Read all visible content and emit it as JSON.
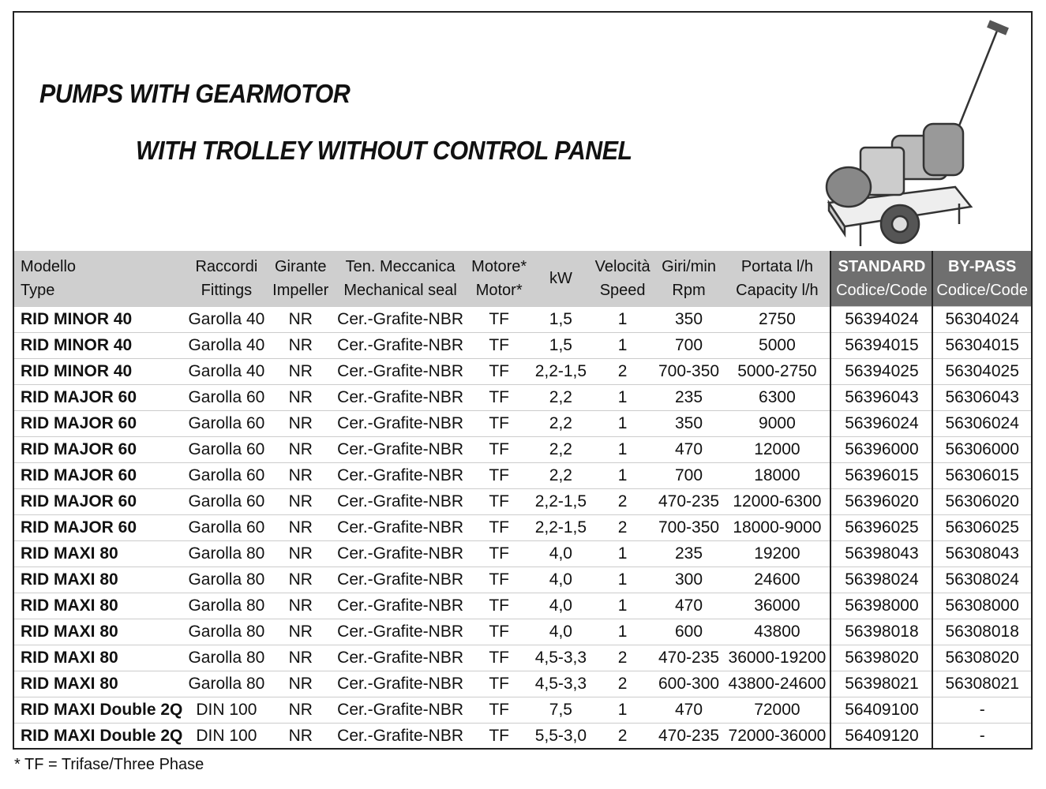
{
  "title_line1": "PUMPS WITH GEARMOTOR",
  "title_line2": "WITH TROLLEY WITHOUT CONTROL PANEL",
  "headers": {
    "model": [
      "Modello",
      "Type"
    ],
    "fittings": [
      "Raccordi",
      "Fittings"
    ],
    "impeller": [
      "Girante",
      "Impeller"
    ],
    "seal": [
      "Ten. Meccanica",
      "Mechanical seal"
    ],
    "motor": [
      "Motore*",
      "Motor*"
    ],
    "kw": "kW",
    "speed": [
      "Velocità",
      "Speed"
    ],
    "rpm": [
      "Giri/min",
      "Rpm"
    ],
    "capacity": [
      "Portata l/h",
      "Capacity l/h"
    ],
    "standard": [
      "STANDARD",
      "Codice/Code"
    ],
    "bypass": [
      "BY-PASS",
      "Codice/Code"
    ]
  },
  "rows": [
    [
      "RID MINOR 40",
      "Garolla 40",
      "NR",
      "Cer.-Grafite-NBR",
      "TF",
      "1,5",
      "1",
      "350",
      "2750",
      "56394024",
      "56304024"
    ],
    [
      "RID MINOR 40",
      "Garolla 40",
      "NR",
      "Cer.-Grafite-NBR",
      "TF",
      "1,5",
      "1",
      "700",
      "5000",
      "56394015",
      "56304015"
    ],
    [
      "RID MINOR 40",
      "Garolla 40",
      "NR",
      "Cer.-Grafite-NBR",
      "TF",
      "2,2-1,5",
      "2",
      "700-350",
      "5000-2750",
      "56394025",
      "56304025"
    ],
    [
      "RID MAJOR 60",
      "Garolla 60",
      "NR",
      "Cer.-Grafite-NBR",
      "TF",
      "2,2",
      "1",
      "235",
      "6300",
      "56396043",
      "56306043"
    ],
    [
      "RID MAJOR 60",
      "Garolla 60",
      "NR",
      "Cer.-Grafite-NBR",
      "TF",
      "2,2",
      "1",
      "350",
      "9000",
      "56396024",
      "56306024"
    ],
    [
      "RID MAJOR 60",
      "Garolla 60",
      "NR",
      "Cer.-Grafite-NBR",
      "TF",
      "2,2",
      "1",
      "470",
      "12000",
      "56396000",
      "56306000"
    ],
    [
      "RID MAJOR 60",
      "Garolla 60",
      "NR",
      "Cer.-Grafite-NBR",
      "TF",
      "2,2",
      "1",
      "700",
      "18000",
      "56396015",
      "56306015"
    ],
    [
      "RID MAJOR 60",
      "Garolla 60",
      "NR",
      "Cer.-Grafite-NBR",
      "TF",
      "2,2-1,5",
      "2",
      "470-235",
      "12000-6300",
      "56396020",
      "56306020"
    ],
    [
      "RID MAJOR 60",
      "Garolla 60",
      "NR",
      "Cer.-Grafite-NBR",
      "TF",
      "2,2-1,5",
      "2",
      "700-350",
      "18000-9000",
      "56396025",
      "56306025"
    ],
    [
      "RID MAXI 80",
      "Garolla 80",
      "NR",
      "Cer.-Grafite-NBR",
      "TF",
      "4,0",
      "1",
      "235",
      "19200",
      "56398043",
      "56308043"
    ],
    [
      "RID MAXI 80",
      "Garolla 80",
      "NR",
      "Cer.-Grafite-NBR",
      "TF",
      "4,0",
      "1",
      "300",
      "24600",
      "56398024",
      "56308024"
    ],
    [
      "RID MAXI 80",
      "Garolla 80",
      "NR",
      "Cer.-Grafite-NBR",
      "TF",
      "4,0",
      "1",
      "470",
      "36000",
      "56398000",
      "56308000"
    ],
    [
      "RID MAXI 80",
      "Garolla 80",
      "NR",
      "Cer.-Grafite-NBR",
      "TF",
      "4,0",
      "1",
      "600",
      "43800",
      "56398018",
      "56308018"
    ],
    [
      "RID MAXI 80",
      "Garolla 80",
      "NR",
      "Cer.-Grafite-NBR",
      "TF",
      "4,5-3,3",
      "2",
      "470-235",
      "36000-19200",
      "56398020",
      "56308020"
    ],
    [
      "RID MAXI 80",
      "Garolla 80",
      "NR",
      "Cer.-Grafite-NBR",
      "TF",
      "4,5-3,3",
      "2",
      "600-300",
      "43800-24600",
      "56398021",
      "56308021"
    ],
    [
      "RID MAXI Double 2Q",
      "DIN 100",
      "NR",
      "Cer.-Grafite-NBR",
      "TF",
      "7,5",
      "1",
      "470",
      "72000",
      "56409100",
      "-"
    ],
    [
      "RID MAXI Double 2Q",
      "DIN 100",
      "NR",
      "Cer.-Grafite-NBR",
      "TF",
      "5,5-3,0",
      "2",
      "470-235",
      "72000-36000",
      "56409120",
      "-"
    ]
  ],
  "footnote": "* TF = Trifase/Three Phase",
  "colors": {
    "header_bg": "#cfcfcf",
    "code_header_bg": "#6f6f6f",
    "border": "#222222"
  }
}
